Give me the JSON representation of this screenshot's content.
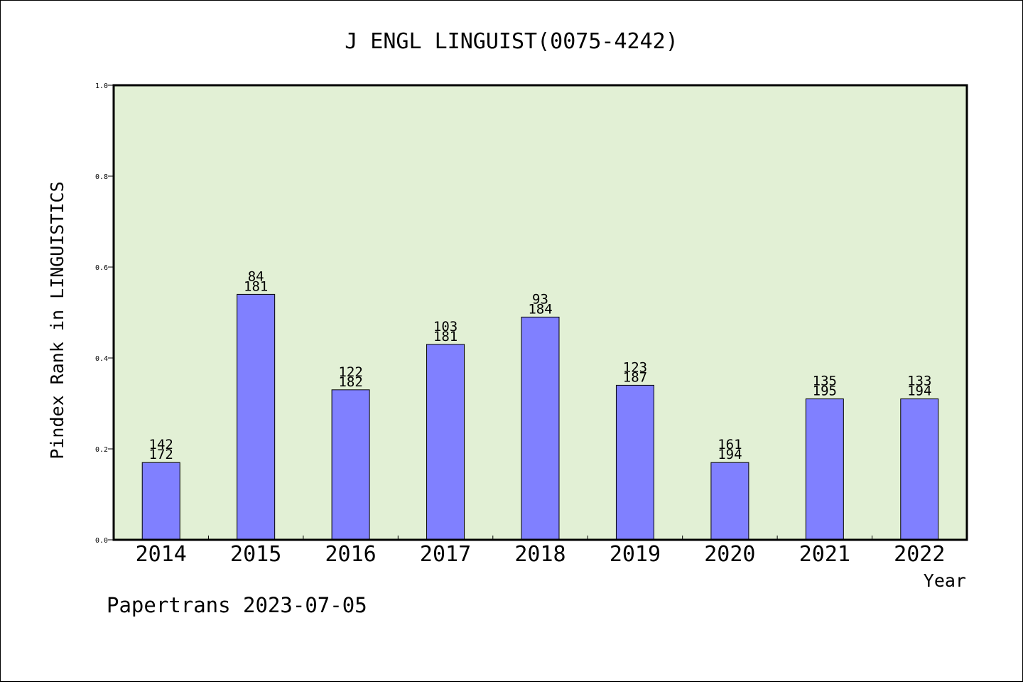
{
  "footer": "Papertrans 2023-07-05",
  "chart_data": {
    "type": "bar",
    "title": "J ENGL LINGUIST(0075-4242)",
    "xlabel": "Year",
    "ylabel": "Pindex Rank in LINGUISTICS",
    "ylim": [
      0,
      1.0
    ],
    "yticks": [
      "0.0",
      "0.2",
      "0.4",
      "0.6",
      "0.8",
      "1.0"
    ],
    "grid": false,
    "categories": [
      "2014",
      "2015",
      "2016",
      "2017",
      "2018",
      "2019",
      "2020",
      "2021",
      "2022"
    ],
    "values": [
      0.17,
      0.54,
      0.33,
      0.43,
      0.49,
      0.34,
      0.17,
      0.31,
      0.31
    ],
    "rank_labels": [
      "142",
      "84",
      "122",
      "103",
      "93",
      "123",
      "161",
      "135",
      "133"
    ],
    "total_labels": [
      "172",
      "181",
      "182",
      "181",
      "184",
      "187",
      "194",
      "195",
      "194"
    ],
    "colors": {
      "plot_bg": "#e2f0d5",
      "bar_fill": "#8080ff",
      "bar_stroke": "#000000"
    }
  }
}
